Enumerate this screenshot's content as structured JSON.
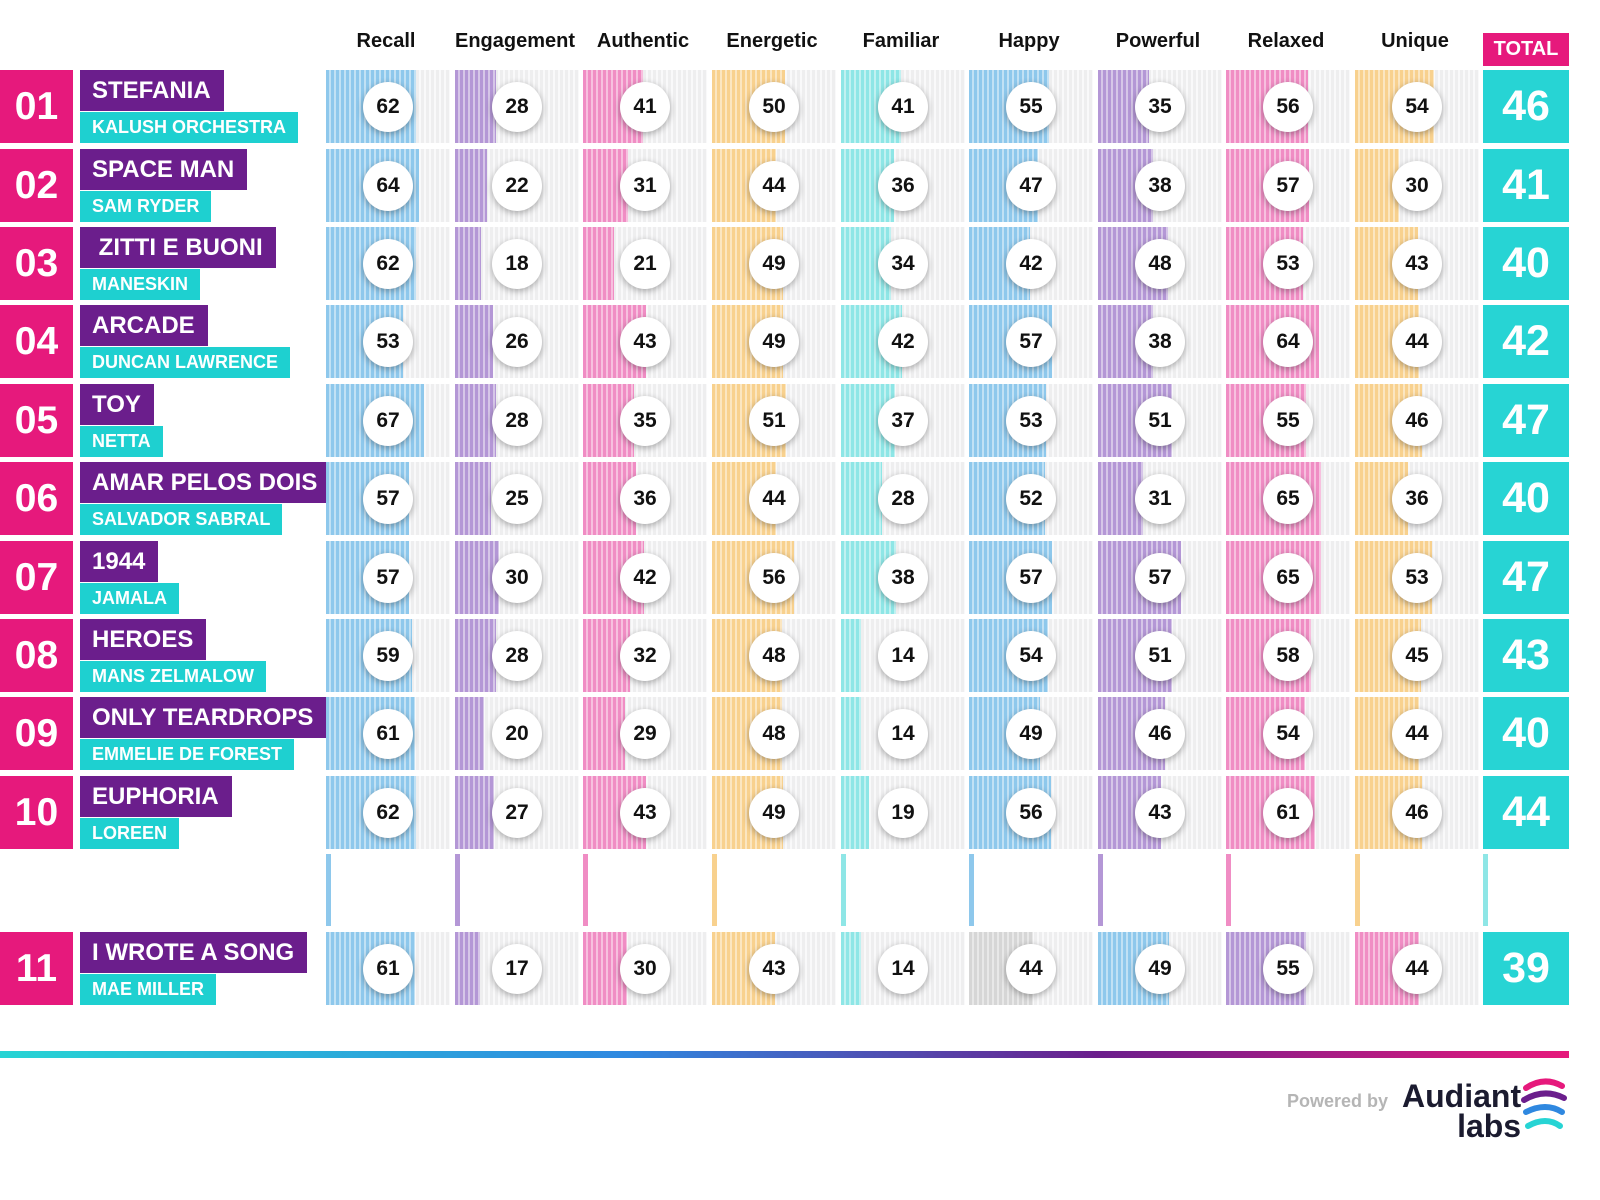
{
  "chart_data": {
    "type": "table",
    "columns": [
      "Recall",
      "Engagement",
      "Authentic",
      "Energetic",
      "Familiar",
      "Happy",
      "Powerful",
      "Relaxed",
      "Unique"
    ],
    "total_label": "TOTAL",
    "column_colors": [
      "#8ec8ec",
      "#b497d6",
      "#f08dc4",
      "#f8d18e",
      "#8ee6e6",
      "#8ec8ec",
      "#b497d6",
      "#f08dc4",
      "#f8d18e"
    ],
    "rows": [
      {
        "rank": "01",
        "song": "STEFANIA",
        "artist": "KALUSH ORCHESTRA",
        "values": [
          62,
          28,
          41,
          50,
          41,
          55,
          35,
          56,
          54
        ],
        "total": "46"
      },
      {
        "rank": "02",
        "song": "SPACE MAN",
        "artist": "SAM RYDER",
        "values": [
          64,
          22,
          31,
          44,
          36,
          47,
          38,
          57,
          30
        ],
        "total": "41"
      },
      {
        "rank": "03",
        "song": " ZITTI E BUONI",
        "artist": "MANESKIN",
        "values": [
          62,
          18,
          21,
          49,
          34,
          42,
          48,
          53,
          43
        ],
        "total": "40"
      },
      {
        "rank": "04",
        "song": "ARCADE",
        "artist": "DUNCAN LAWRENCE",
        "values": [
          53,
          26,
          43,
          49,
          42,
          57,
          38,
          64,
          44
        ],
        "total": "42"
      },
      {
        "rank": "05",
        "song": "TOY",
        "artist": "NETTA",
        "values": [
          67,
          28,
          35,
          51,
          37,
          53,
          51,
          55,
          46
        ],
        "total": "47"
      },
      {
        "rank": "06",
        "song": "AMAR PELOS DOIS",
        "artist": "SALVADOR SABRAL",
        "values": [
          57,
          25,
          36,
          44,
          28,
          52,
          31,
          65,
          36
        ],
        "total": "40"
      },
      {
        "rank": "07",
        "song": "1944",
        "artist": "JAMALA",
        "values": [
          57,
          30,
          42,
          56,
          38,
          57,
          57,
          65,
          53
        ],
        "total": "47"
      },
      {
        "rank": "08",
        "song": "HEROES",
        "artist": "MANS ZELMALOW",
        "values": [
          59,
          28,
          32,
          48,
          14,
          54,
          51,
          58,
          45
        ],
        "total": "43"
      },
      {
        "rank": "09",
        "song": "ONLY TEARDROPS",
        "artist": "EMMELIE DE FOREST",
        "values": [
          61,
          20,
          29,
          48,
          14,
          49,
          46,
          54,
          44
        ],
        "total": "40"
      },
      {
        "rank": "10",
        "song": "EUPHORIA",
        "artist": "LOREEN",
        "values": [
          62,
          27,
          43,
          49,
          19,
          56,
          43,
          61,
          46
        ],
        "total": "44"
      },
      {
        "rank": "11",
        "song": "I WROTE A SONG",
        "artist": "MAE MILLER",
        "values": [
          61,
          17,
          30,
          43,
          14,
          44,
          49,
          55,
          44
        ],
        "total": "39",
        "cell_colors": [
          "#8ec8ec",
          "#b497d6",
          "#f08dc4",
          "#f8d18e",
          "#8ee6e6",
          "#d6d6d6",
          "#8ec8ec",
          "#b497d6",
          "#f08dc4"
        ]
      }
    ]
  },
  "footer": {
    "powered_by": "Powered by",
    "brand_line1": "Audiant",
    "brand_line2": "labs"
  },
  "colors": {
    "rank_bg": "#e6197c",
    "song_bg": "#6b1e8c",
    "artist_bg": "#1ed0d0",
    "total_bg": "#27d4d4"
  }
}
